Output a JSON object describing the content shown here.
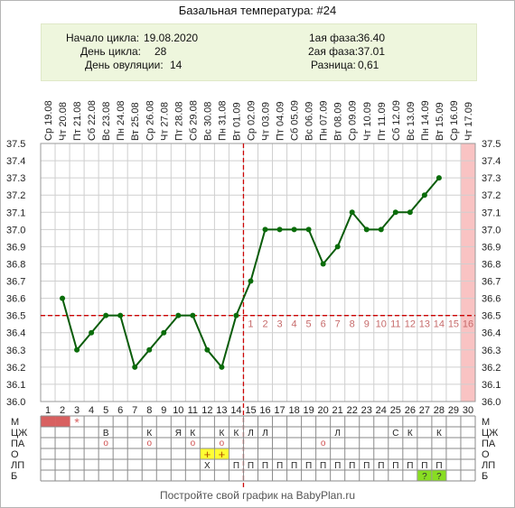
{
  "title": "Базальная температура: #24",
  "info": {
    "cycle_start_label": "Начало цикла:",
    "cycle_start": "19.08.2020",
    "cycle_day_label": "День цикла:",
    "cycle_day": "28",
    "ovulation_day_label": "День овуляции:",
    "ovulation_day": "14",
    "phase1_label": "1ая фаза:",
    "phase1": "36.40",
    "phase2_label": "2ая фаза:",
    "phase2": "37.01",
    "diff_label": "Разница:",
    "diff": "0,61"
  },
  "chart_data": {
    "type": "line",
    "x": [
      1,
      2,
      3,
      4,
      5,
      6,
      7,
      8,
      9,
      10,
      11,
      12,
      13,
      14,
      15,
      16,
      17,
      18,
      19,
      20,
      21,
      22,
      23,
      24,
      25,
      26,
      27,
      28,
      29,
      30
    ],
    "dates": [
      "Ср 19.08",
      "Чт 20.08",
      "Пт 21.08",
      "Сб 22.08",
      "Вс 23.08",
      "Пн 24.08",
      "Вт 25.08",
      "Ср 26.08",
      "Чт 27.08",
      "Пт 28.08",
      "Сб 29.08",
      "Вс 30.08",
      "Пн 31.08",
      "Вт 01.09",
      "Ср 02.09",
      "Чт 03.09",
      "Пт 04.09",
      "Сб 05.09",
      "Вс 06.09",
      "Пн 07.09",
      "Вт 08.09",
      "Ср 09.09",
      "Чт 10.09",
      "Пт 11.09",
      "Сб 12.09",
      "Вс 13.09",
      "Пн 14.09",
      "Вт 15.09",
      "Ср 16.09",
      "Чт 17.09"
    ],
    "values": [
      null,
      36.6,
      36.3,
      36.4,
      36.5,
      36.5,
      36.2,
      36.3,
      36.4,
      36.5,
      36.5,
      36.3,
      36.2,
      36.5,
      36.7,
      37.0,
      37.0,
      37.0,
      37.0,
      36.8,
      36.9,
      37.1,
      37.0,
      37.0,
      37.1,
      37.1,
      37.2,
      37.3,
      null,
      null
    ],
    "ylim": [
      36.0,
      37.5
    ],
    "yticks": [
      "36.0",
      "36.1",
      "36.2",
      "36.3",
      "36.4",
      "36.5",
      "36.6",
      "36.7",
      "36.8",
      "36.9",
      "37.0",
      "37.1",
      "37.2",
      "37.3",
      "37.4",
      "37.5"
    ],
    "coverline": 36.5,
    "ovulation_day": 14,
    "highlight_day": 30,
    "moon_day": 10,
    "luteal_labels": [
      "1",
      "2",
      "3",
      "4",
      "5",
      "6",
      "7",
      "8",
      "9",
      "10",
      "11",
      "12",
      "13",
      "14",
      "15",
      "16"
    ],
    "grid": true,
    "colors": {
      "line": "#0a5c0a",
      "point": "#0a6d0a",
      "coverline": "#cc0000",
      "grid": "#cfcfcf",
      "highlight": "#f9c3c3",
      "luteal_text": "#c66b6b"
    }
  },
  "table": {
    "row_labels": [
      "М",
      "ЦЖ",
      "ПА",
      "О",
      "ЛП",
      "Б"
    ],
    "M": {
      "filled_days": [
        1,
        2
      ],
      "star_day": 3,
      "star": "*",
      "color": "#d86060"
    },
    "CZH": [
      {
        "day": 5,
        "t": "В"
      },
      {
        "day": 8,
        "t": "К"
      },
      {
        "day": 10,
        "t": "Я"
      },
      {
        "day": 11,
        "t": "К"
      },
      {
        "day": 13,
        "t": "К"
      },
      {
        "day": 14,
        "t": "К"
      },
      {
        "day": 15,
        "t": "Л"
      },
      {
        "day": 16,
        "t": "Л"
      },
      {
        "day": 21,
        "t": "Л"
      },
      {
        "day": 25,
        "t": "С"
      },
      {
        "day": 26,
        "t": "К"
      },
      {
        "day": 28,
        "t": "К"
      }
    ],
    "PA": {
      "days": [
        5,
        8,
        11,
        13,
        20
      ],
      "mark": "o"
    },
    "O": {
      "days": [
        12,
        13
      ],
      "mark": "+",
      "color": "#ffff33"
    },
    "LP": [
      {
        "day": 12,
        "t": "Х"
      },
      {
        "day": 14,
        "t": "П"
      },
      {
        "day": 15,
        "t": "П"
      },
      {
        "day": 16,
        "t": "П"
      },
      {
        "day": 17,
        "t": "П"
      },
      {
        "day": 18,
        "t": "П"
      },
      {
        "day": 19,
        "t": "П"
      },
      {
        "day": 20,
        "t": "П"
      },
      {
        "day": 21,
        "t": "П"
      },
      {
        "day": 22,
        "t": "П"
      },
      {
        "day": 23,
        "t": "П"
      },
      {
        "day": 24,
        "t": "П"
      },
      {
        "day": 25,
        "t": "П"
      },
      {
        "day": 26,
        "t": "П"
      },
      {
        "day": 27,
        "t": "П"
      },
      {
        "day": 28,
        "t": "П"
      }
    ],
    "B": {
      "days": [
        27,
        28
      ],
      "mark": "?",
      "color": "#88dd22"
    }
  },
  "footer": "Постройте свой график на BabyPlan.ru"
}
